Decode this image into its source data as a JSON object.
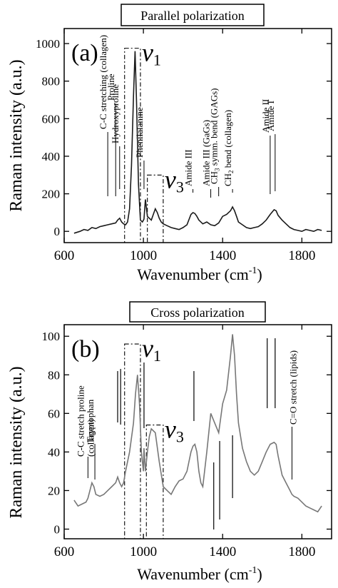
{
  "colors": {
    "trace_a": "#1a1a1a",
    "trace_b": "#777777",
    "axis": "#000000",
    "box": "#000000"
  },
  "chart_data": [
    {
      "type": "line",
      "panel_label": "(a)",
      "title": "Parallel polarization",
      "xlabel": "Wavenumber (cm",
      "xlabel_sup": "-1",
      "xlabel_end": ")",
      "ylabel": "Raman intensity (a.u.)",
      "xlim": [
        600,
        1950
      ],
      "ylim": [
        -60,
        1080
      ],
      "xticks": [
        600,
        1000,
        1400,
        1800
      ],
      "yticks": [
        0,
        200,
        400,
        600,
        800,
        1000
      ],
      "grid": false,
      "series": [
        {
          "x": [
            650,
            680,
            700,
            720,
            740,
            760,
            780,
            800,
            820,
            840,
            860,
            870,
            880,
            890,
            900,
            910,
            920,
            930,
            940,
            950,
            958,
            965,
            975,
            985,
            995,
            1003,
            1010,
            1020,
            1030,
            1040,
            1050,
            1060,
            1070,
            1080,
            1090,
            1100,
            1120,
            1140,
            1160,
            1180,
            1200,
            1220,
            1240,
            1250,
            1260,
            1270,
            1280,
            1300,
            1320,
            1340,
            1360,
            1380,
            1400,
            1420,
            1440,
            1450,
            1460,
            1470,
            1480,
            1500,
            1520,
            1540,
            1560,
            1580,
            1600,
            1620,
            1640,
            1660,
            1670,
            1680,
            1700,
            1720,
            1740,
            1760,
            1780,
            1800,
            1820,
            1840,
            1860,
            1880,
            1900
          ],
          "y": [
            -10,
            0,
            10,
            5,
            20,
            15,
            25,
            30,
            35,
            40,
            45,
            60,
            70,
            50,
            40,
            35,
            50,
            120,
            350,
            720,
            960,
            700,
            250,
            60,
            50,
            65,
            170,
            80,
            70,
            60,
            90,
            120,
            100,
            70,
            50,
            40,
            30,
            20,
            15,
            10,
            20,
            35,
            90,
            100,
            95,
            80,
            60,
            40,
            50,
            35,
            30,
            45,
            80,
            90,
            110,
            130,
            110,
            80,
            50,
            35,
            20,
            15,
            20,
            25,
            40,
            60,
            90,
            115,
            110,
            85,
            60,
            40,
            20,
            10,
            5,
            0,
            10,
            5,
            0,
            10,
            5
          ]
        }
      ],
      "annotations": [
        {
          "text": "C-C stretching (collagen)",
          "x": 820
        },
        {
          "text": "Proline",
          "x": 860
        },
        {
          "text": "Hydroxyproline",
          "x": 880
        },
        {
          "text": "Phenilalanine",
          "x": 1003
        },
        {
          "text": "Amide III",
          "x": 1250
        },
        {
          "text": "Amide III (GaGs)",
          "x": 1340
        },
        {
          "text": "CH",
          "sub": "3",
          "rest": " symm. bend (GAGs)",
          "x": 1380
        },
        {
          "text": "CH",
          "sub": "2",
          "rest": " bend (collagen)",
          "x": 1450
        },
        {
          "text": "Amide II",
          "x": 1640
        },
        {
          "text": "Amide I",
          "x": 1665
        }
      ],
      "band_labels": [
        {
          "letter": "v",
          "sub": "1",
          "x_range": [
            905,
            985
          ],
          "y_range": [
            -60,
            975
          ]
        },
        {
          "letter": "v",
          "sub": "3",
          "x_range": [
            1020,
            1100
          ],
          "y_range": [
            -60,
            300
          ]
        }
      ]
    },
    {
      "type": "line",
      "panel_label": "(b)",
      "title": "Cross polarization",
      "xlabel": "Wavenumber (cm",
      "xlabel_sup": "-1",
      "xlabel_end": ")",
      "ylabel": "Raman intensity (a.u.)",
      "xlim": [
        600,
        1950
      ],
      "ylim": [
        -5,
        106
      ],
      "xticks": [
        600,
        1000,
        1400,
        1800
      ],
      "yticks": [
        0,
        20,
        40,
        60,
        80,
        100
      ],
      "grid": false,
      "series": [
        {
          "x": [
            650,
            670,
            690,
            710,
            720,
            730,
            740,
            750,
            760,
            780,
            800,
            820,
            840,
            860,
            870,
            880,
            890,
            900,
            910,
            930,
            950,
            960,
            970,
            980,
            990,
            1000,
            1003,
            1010,
            1020,
            1030,
            1040,
            1060,
            1080,
            1100,
            1120,
            1140,
            1160,
            1180,
            1200,
            1220,
            1240,
            1250,
            1260,
            1270,
            1280,
            1290,
            1300,
            1320,
            1340,
            1360,
            1380,
            1400,
            1420,
            1440,
            1450,
            1460,
            1470,
            1480,
            1500,
            1520,
            1540,
            1560,
            1580,
            1600,
            1620,
            1640,
            1660,
            1670,
            1680,
            1700,
            1720,
            1740,
            1750,
            1760,
            1780,
            1800,
            1820,
            1840,
            1860,
            1880,
            1900
          ],
          "y": [
            15,
            12,
            13,
            14,
            16,
            20,
            24,
            22,
            18,
            17,
            18,
            20,
            22,
            24,
            27,
            24,
            22,
            24,
            30,
            40,
            55,
            70,
            80,
            65,
            40,
            30,
            42,
            30,
            40,
            48,
            52,
            50,
            35,
            22,
            20,
            18,
            22,
            25,
            26,
            30,
            40,
            43,
            44,
            40,
            30,
            24,
            22,
            40,
            60,
            55,
            50,
            65,
            72,
            90,
            101,
            90,
            70,
            55,
            42,
            35,
            30,
            28,
            30,
            35,
            40,
            44,
            45,
            44,
            38,
            28,
            24,
            20,
            18,
            17,
            16,
            14,
            12,
            11,
            10,
            9,
            12
          ]
        }
      ],
      "annotations": [
        {
          "text": "C-C stretch proline",
          "x": 720
        },
        {
          "text": "(collagen)",
          "x": 720
        },
        {
          "text": "Tryptophan",
          "x": 755
        },
        {
          "text": "C=O stretch (lipids)",
          "x": 1750
        }
      ],
      "band_labels": [
        {
          "letter": "v",
          "sub": "1",
          "x_range": [
            905,
            985
          ],
          "y_range": [
            -5,
            96
          ]
        },
        {
          "letter": "v",
          "sub": "3",
          "x_range": [
            1015,
            1100
          ],
          "y_range": [
            -5,
            54
          ]
        }
      ]
    }
  ]
}
